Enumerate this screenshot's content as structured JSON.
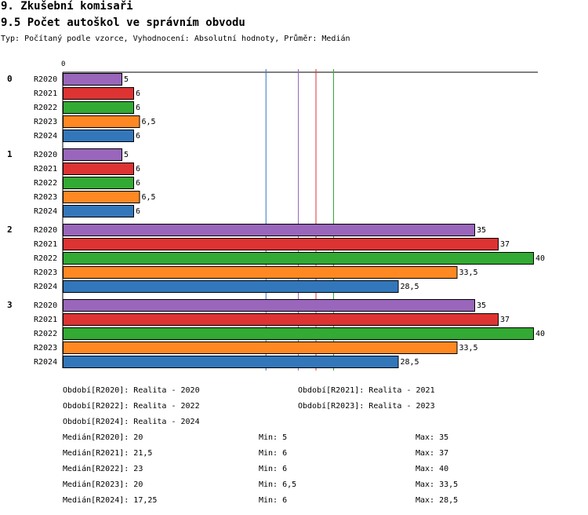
{
  "header": {
    "title": "9. Zkušební komisaři",
    "subtitle": "9.5 Počet autoškol ve správním obvodu",
    "type_line": "Typ: Počítaný podle vzorce, Vyhodnocení: Absolutní hodnoty, Průměr: Medián"
  },
  "colors": {
    "R2020": "#9966bb",
    "R2021": "#dd3333",
    "R2022": "#33aa33",
    "R2023": "#ff8822",
    "R2024": "#3377bb"
  },
  "chart_data": {
    "type": "bar",
    "orientation": "horizontal",
    "x_tick_label": "0",
    "xlim": [
      0,
      40
    ],
    "groups": [
      "0",
      "1",
      "2",
      "3"
    ],
    "series_names": [
      "R2020",
      "R2021",
      "R2022",
      "R2023",
      "R2024"
    ],
    "values": [
      [
        5,
        6,
        6,
        6.5,
        6
      ],
      [
        5,
        6,
        6,
        6.5,
        6
      ],
      [
        35,
        37,
        40,
        33.5,
        28.5
      ],
      [
        35,
        37,
        40,
        33.5,
        28.5
      ]
    ],
    "value_labels": [
      [
        "5",
        "6",
        "6",
        "6,5",
        "6"
      ],
      [
        "5",
        "6",
        "6",
        "6,5",
        "6"
      ],
      [
        "35",
        "37",
        "40",
        "33,5",
        "28,5"
      ],
      [
        "35",
        "37",
        "40",
        "33,5",
        "28,5"
      ]
    ],
    "reference_lines": [
      {
        "series": "R2024",
        "value": 17.25
      },
      {
        "series": "R2023",
        "value": 20
      },
      {
        "series": "R2020",
        "value": 20
      },
      {
        "series": "R2021",
        "value": 21.5
      },
      {
        "series": "R2022",
        "value": 23
      }
    ]
  },
  "legend": [
    "Období[R2020]: Realita - 2020",
    "Období[R2021]: Realita - 2021",
    "Období[R2022]: Realita - 2022",
    "Období[R2023]: Realita - 2023",
    "Období[R2024]: Realita - 2024"
  ],
  "stats": [
    {
      "median": "Medián[R2020]: 20",
      "min": "Min: 5",
      "max": "Max: 35"
    },
    {
      "median": "Medián[R2021]: 21,5",
      "min": "Min: 6",
      "max": "Max: 37"
    },
    {
      "median": "Medián[R2022]: 23",
      "min": "Min: 6",
      "max": "Max: 40"
    },
    {
      "median": "Medián[R2023]: 20",
      "min": "Min: 6,5",
      "max": "Max: 33,5"
    },
    {
      "median": "Medián[R2024]: 17,25",
      "min": "Min: 6",
      "max": "Max: 28,5"
    }
  ]
}
